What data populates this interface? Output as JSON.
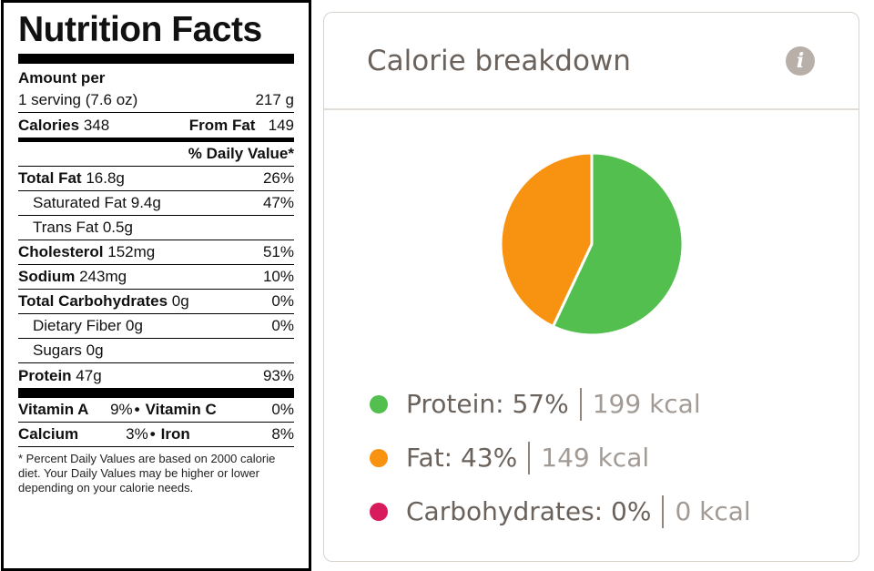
{
  "nutrition": {
    "title": "Nutrition Facts",
    "amount_per": "Amount per",
    "serving_label": "1 serving (7.6 oz)",
    "serving_weight": "217 g",
    "calories_label": "Calories",
    "calories_value": "348",
    "from_fat_label": "From Fat",
    "from_fat_value": "149",
    "dv_header": "% Daily Value*",
    "rows": [
      {
        "label": "Total Fat",
        "amount": "16.8g",
        "dv": "26%"
      },
      {
        "label": "Saturated Fat",
        "amount": "9.4g",
        "dv": "47%"
      },
      {
        "label": "Trans Fat",
        "amount": "0.5g",
        "dv": ""
      },
      {
        "label": "Cholesterol",
        "amount": "152mg",
        "dv": "51%"
      },
      {
        "label": "Sodium",
        "amount": "243mg",
        "dv": "10%"
      },
      {
        "label": "Total Carbohydrates",
        "amount": "0g",
        "dv": "0%"
      },
      {
        "label": "Dietary Fiber",
        "amount": "0g",
        "dv": "0%"
      },
      {
        "label": "Sugars",
        "amount": "0g",
        "dv": ""
      },
      {
        "label": "Protein",
        "amount": "47g",
        "dv": "93%"
      }
    ],
    "vitamins": [
      {
        "left_label": "Vitamin A",
        "left_pct": "9%",
        "right_label": "Vitamin C",
        "right_pct": "0%"
      },
      {
        "left_label": "Calcium",
        "left_pct": "3%",
        "right_label": "Iron",
        "right_pct": "8%"
      }
    ],
    "bullet": "•",
    "footnote": "* Percent Daily Values are based on 2000 calorie diet. Your Daily Values may be higher or lower depending on your calorie needs."
  },
  "breakdown": {
    "title": "Calorie breakdown",
    "info_icon": "i",
    "items": [
      {
        "name": "Protein: 57%",
        "kcal": "199 kcal",
        "color": "#52bf4f",
        "percent": 57
      },
      {
        "name": "Fat: 43%",
        "kcal": "149 kcal",
        "color": "#f79311",
        "percent": 43
      },
      {
        "name": "Carbohydrates: 0%",
        "kcal": "0 kcal",
        "color": "#d81b5c",
        "percent": 0
      }
    ]
  }
}
